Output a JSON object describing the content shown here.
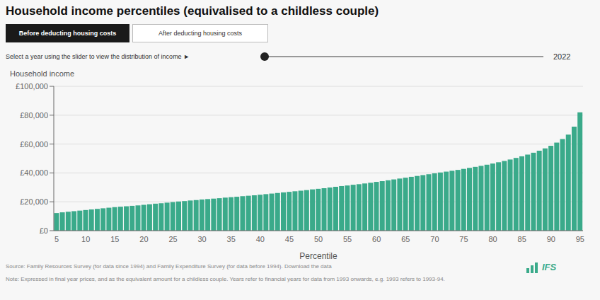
{
  "chart_data": {
    "type": "bar",
    "title": "Household income percentiles (equivalised to a childless couple)",
    "xlabel": "Percentile",
    "ylabel": "Household income",
    "categories": [
      "5",
      null,
      null,
      null,
      null,
      "10",
      null,
      null,
      null,
      null,
      "15",
      null,
      null,
      null,
      null,
      "20",
      null,
      null,
      null,
      null,
      "25",
      null,
      null,
      null,
      null,
      "30",
      null,
      null,
      null,
      null,
      "35",
      null,
      null,
      null,
      null,
      "40",
      null,
      null,
      null,
      null,
      "45",
      null,
      null,
      null,
      null,
      "50",
      null,
      null,
      null,
      null,
      "55",
      null,
      null,
      null,
      null,
      "60",
      null,
      null,
      null,
      null,
      "65",
      null,
      null,
      null,
      null,
      "70",
      null,
      null,
      null,
      null,
      "75",
      null,
      null,
      null,
      null,
      "80",
      null,
      null,
      null,
      null,
      "85",
      null,
      null,
      null,
      null,
      "90",
      null,
      null,
      null,
      null,
      "95"
    ],
    "values": [
      12200,
      12700,
      13100,
      13500,
      13900,
      14300,
      14700,
      15100,
      15500,
      15900,
      16300,
      16600,
      16900,
      17200,
      17500,
      17900,
      18300,
      18700,
      19000,
      19400,
      19800,
      20200,
      20500,
      20900,
      21200,
      21600,
      21900,
      22200,
      22500,
      22900,
      23200,
      23500,
      23900,
      24200,
      24500,
      24900,
      25300,
      25700,
      26100,
      26500,
      26900,
      27300,
      27700,
      28100,
      28600,
      29000,
      29400,
      29900,
      30400,
      30900,
      31300,
      31800,
      32200,
      32700,
      33200,
      33800,
      34300,
      34900,
      35500,
      36100,
      36700,
      37300,
      37900,
      38500,
      39100,
      39700,
      40300,
      40900,
      41500,
      42100,
      42800,
      43500,
      44200,
      44900,
      45700,
      46500,
      47400,
      48300,
      49300,
      50400,
      51500,
      52700,
      54000,
      55400,
      57000,
      58800,
      61000,
      63500,
      66500,
      72000,
      82000
    ],
    "color": "#3aaa8a",
    "ylim": [
      0,
      100000
    ],
    "yticks": [
      {
        "value": 0,
        "label": "£0"
      },
      {
        "value": 20000,
        "label": "£20,000"
      },
      {
        "value": 40000,
        "label": "£40,000"
      },
      {
        "value": 60000,
        "label": "£60,000"
      },
      {
        "value": 80000,
        "label": "£80,000"
      },
      {
        "value": 100000,
        "label": "£100,000"
      }
    ],
    "grid": true,
    "annotations": [
      "Before deducting housing costs",
      "After deducting housing costs",
      "Select a year using the slider to view the distribution of income ►",
      "2022",
      "Source: Family Resources Survey (for data since 1994) and Family Expenditure Survey (for data before 1994). Download the data",
      "Note: Expressed in final year prices, and as the equivalent amount for a childless couple. Years refer to financial years for data from 1993 onwards, e.g. 1993 refers to 1993-94.",
      "IFS"
    ]
  }
}
